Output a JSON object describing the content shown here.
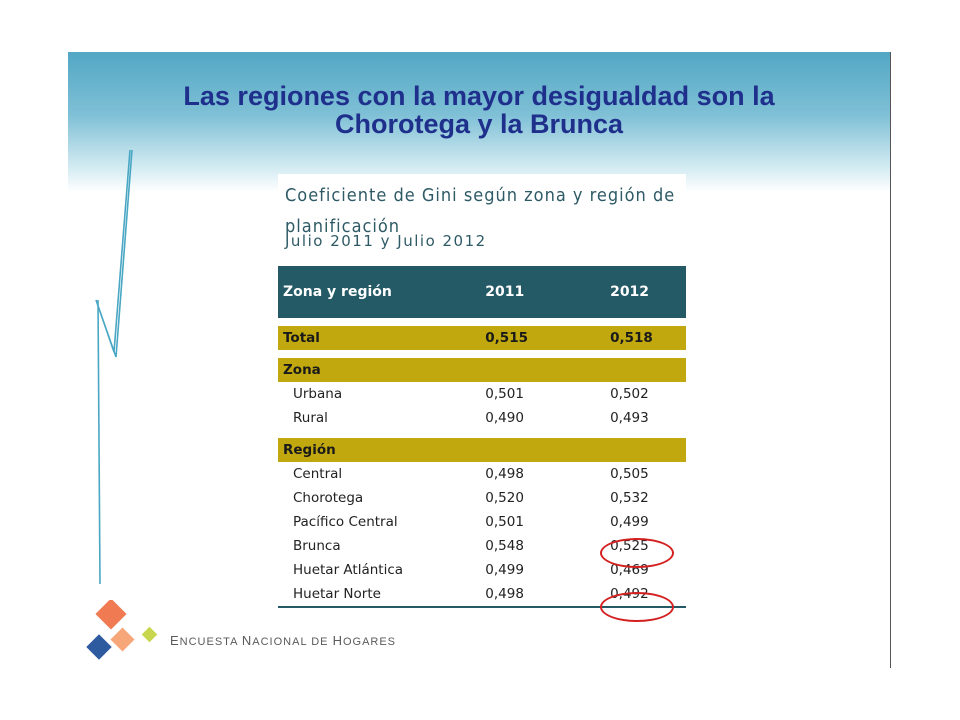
{
  "title": {
    "line1": "Las regiones con la mayor desigualdad son la",
    "line2": "Chorotega y la Brunca"
  },
  "table": {
    "caption_line1": "Coeficiente de Gini según zona y región de",
    "caption_line2": "planificación",
    "period": "Julio 2011 y Julio 2012",
    "header": [
      "Zona y  región",
      "2011",
      "2012"
    ],
    "total": {
      "label": "Total",
      "y2011": "0,515",
      "y2012": "0,518"
    },
    "zona_label": "Zona",
    "zona_rows": [
      {
        "label": "Urbana",
        "y2011": "0,501",
        "y2012": "0,502"
      },
      {
        "label": "Rural",
        "y2011": "0,490",
        "y2012": "0,493"
      }
    ],
    "region_label": "Región",
    "region_rows": [
      {
        "label": "Central",
        "y2011": "0,498",
        "y2012": "0,505"
      },
      {
        "label": "Chorotega",
        "y2011": "0,520",
        "y2012": "0,532"
      },
      {
        "label": "Pacífico Central",
        "y2011": "0,501",
        "y2012": "0,499"
      },
      {
        "label": "Brunca",
        "y2011": "0,548",
        "y2012": "0,525"
      },
      {
        "label": "Huetar Atlántica",
        "y2011": "0,499",
        "y2012": "0,469"
      },
      {
        "label": "Huetar Norte",
        "y2011": "0,498",
        "y2012": "0,492"
      }
    ],
    "colors": {
      "header": "#245a66",
      "highlight_band": "#c0a80e",
      "circle": "#d42020"
    }
  },
  "footer": {
    "E": "E",
    "ncuesta": "NCUESTA",
    "N": "N",
    "acional": "ACIONAL",
    "de": "DE",
    "H": "H",
    "ogares": "OGARES"
  }
}
